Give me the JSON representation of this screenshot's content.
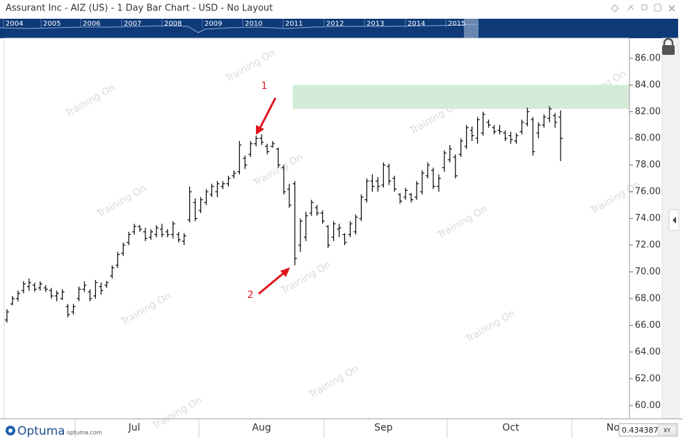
{
  "window_title": "Assurant Inc - AIZ (US) - 1 Day Bar Chart - USD - No Layout",
  "navigator": {
    "years": [
      "2004",
      "2005",
      "2006",
      "2007",
      "2008",
      "2009",
      "2010",
      "2011",
      "2012",
      "2013",
      "2014",
      "2015"
    ]
  },
  "watermark": "Training On",
  "annotations": [
    "1",
    "2"
  ],
  "footer": {
    "brand": "Optuma",
    "url": "optuma.com",
    "cursor_value": "0.4343878",
    "mode": "XY"
  },
  "chart_data": {
    "type": "ohlc",
    "color": "#000000",
    "zone": {
      "from": 82.2,
      "to": 84.0,
      "color": "#d4ecd7"
    },
    "ylim": [
      59.0,
      87.5
    ],
    "yticks": [
      {
        "value": 60,
        "label": "60.00"
      },
      {
        "value": 62,
        "label": "62.00"
      },
      {
        "value": 64,
        "label": "64.00"
      },
      {
        "value": 66,
        "label": "66.00"
      },
      {
        "value": 68,
        "label": "68.00"
      },
      {
        "value": 70,
        "label": "70.00"
      },
      {
        "value": 72,
        "label": "72.00"
      },
      {
        "value": 74,
        "label": "74.00"
      },
      {
        "value": 76,
        "label": "76.00"
      },
      {
        "value": 78,
        "label": "78.00"
      },
      {
        "value": 80,
        "label": "80.00"
      },
      {
        "value": 82,
        "label": "82.00"
      },
      {
        "value": 84,
        "label": "84.00"
      },
      {
        "value": 86,
        "label": "86.00"
      }
    ],
    "categories": [
      null,
      null,
      null,
      null,
      null,
      null,
      null,
      null,
      null,
      null,
      null,
      null,
      null,
      null,
      null,
      null,
      null,
      null,
      null,
      null,
      null,
      null,
      null,
      "Jul",
      null,
      null,
      null,
      null,
      null,
      null,
      null,
      null,
      null,
      null,
      null,
      null,
      null,
      null,
      null,
      null,
      null,
      null,
      null,
      null,
      null,
      null,
      "Aug",
      null,
      null,
      null,
      null,
      null,
      null,
      null,
      null,
      null,
      null,
      null,
      null,
      null,
      null,
      null,
      null,
      null,
      null,
      null,
      null,
      null,
      "Sep",
      null,
      null,
      null,
      null,
      null,
      null,
      null,
      null,
      null,
      null,
      null,
      null,
      null,
      null,
      null,
      null,
      null,
      null,
      null,
      null,
      null,
      null,
      "Oct",
      null,
      null,
      null,
      null,
      null,
      null,
      null,
      null,
      null,
      null,
      null,
      null,
      null,
      null,
      null,
      null,
      null,
      null,
      "Nov",
      null,
      null
    ],
    "open": [
      66.4,
      67.6,
      68.0,
      68.6,
      68.9,
      69.0,
      68.8,
      68.8,
      68.6,
      68.2,
      68.0,
      67.4,
      67.0,
      68.0,
      68.7,
      68.5,
      68.2,
      68.9,
      69.0,
      69.7,
      70.5,
      71.4,
      72.2,
      73.0,
      73.4,
      73.0,
      72.6,
      72.8,
      73.2,
      73.0,
      72.8,
      72.8,
      72.3,
      73.9,
      75.2,
      74.6,
      75.2,
      75.8,
      76.0,
      76.4,
      76.6,
      77.2,
      77.5,
      78.5,
      78.8,
      79.6,
      80.0,
      79.4,
      79.4,
      79.2,
      77.8,
      76.2,
      76.6,
      72.0,
      72.6,
      74.4,
      74.8,
      74.4,
      73.4,
      72.6,
      73.2,
      72.8,
      72.8,
      73.0,
      74.0,
      75.4,
      76.8,
      76.8,
      76.5,
      77.9,
      77.0,
      75.8,
      75.6,
      75.8,
      75.6,
      76.0,
      77.2,
      77.6,
      76.4,
      77.8,
      78.4,
      78.6,
      78.8,
      79.4,
      80.6,
      80.0,
      80.4,
      81.2,
      80.8,
      80.6,
      80.4,
      80.2,
      79.8,
      80.5,
      81.1,
      81.4,
      80.4,
      81.0,
      81.5,
      81.7,
      81.6,
      null,
      null,
      null,
      null,
      null,
      null,
      null,
      null,
      null,
      null,
      null,
      null
    ],
    "high": [
      67.2,
      68.2,
      68.6,
      69.3,
      69.5,
      69.2,
      69.3,
      69.0,
      68.8,
      68.6,
      68.7,
      67.6,
      67.6,
      68.9,
      69.3,
      68.7,
      69.4,
      69.2,
      69.3,
      70.5,
      71.5,
      72.2,
      73.0,
      73.6,
      73.5,
      73.3,
      73.2,
      73.5,
      73.6,
      73.2,
      73.8,
      73.0,
      72.9,
      76.4,
      75.5,
      75.6,
      76.2,
      76.6,
      76.8,
      76.8,
      77.2,
      77.6,
      79.8,
      78.7,
      79.8,
      80.2,
      80.3,
      79.6,
      79.8,
      79.3,
      78.0,
      76.6,
      76.8,
      74.0,
      74.5,
      75.4,
      75.0,
      74.6,
      73.5,
      73.8,
      73.6,
      72.9,
      73.8,
      74.3,
      75.8,
      77.0,
      77.3,
      77.1,
      78.2,
      78.1,
      77.2,
      75.9,
      76.3,
      75.9,
      76.8,
      77.6,
      78.2,
      77.8,
      77.3,
      79.1,
      79.5,
      78.8,
      80.0,
      81.0,
      80.9,
      81.6,
      82.0,
      81.4,
      81.0,
      81.0,
      80.6,
      80.5,
      80.4,
      81.4,
      82.3,
      81.6,
      81.2,
      81.8,
      82.4,
      81.9,
      82.1,
      null,
      null,
      null,
      null,
      null,
      null,
      null,
      null,
      null,
      null,
      null,
      null
    ],
    "low": [
      66.2,
      67.5,
      67.8,
      68.4,
      68.6,
      68.5,
      68.6,
      68.5,
      68.0,
      67.8,
      67.9,
      66.6,
      66.8,
      67.8,
      68.5,
      67.8,
      68.0,
      68.3,
      68.8,
      69.5,
      70.3,
      71.2,
      72.0,
      72.8,
      73.0,
      72.3,
      72.4,
      72.6,
      72.6,
      72.6,
      72.5,
      72.2,
      72.0,
      73.7,
      73.8,
      74.4,
      75.0,
      75.6,
      75.6,
      76.2,
      76.4,
      77.0,
      77.3,
      77.7,
      78.6,
      79.4,
      79.5,
      78.8,
      79.3,
      77.8,
      75.8,
      74.8,
      70.5,
      71.5,
      72.3,
      74.2,
      74.2,
      73.6,
      71.8,
      72.3,
      72.6,
      72.0,
      72.6,
      72.8,
      73.8,
      75.2,
      76.0,
      76.0,
      76.3,
      76.5,
      76.0,
      75.1,
      75.4,
      75.2,
      75.4,
      75.8,
      77.0,
      76.2,
      76.0,
      77.5,
      78.2,
      77.0,
      78.6,
      79.2,
      79.8,
      79.6,
      80.2,
      80.8,
      80.3,
      80.3,
      79.8,
      79.6,
      79.6,
      80.3,
      80.9,
      78.7,
      80.0,
      80.8,
      81.2,
      80.8,
      78.3,
      null,
      null,
      null,
      null,
      null,
      null,
      null,
      null,
      null,
      null,
      null,
      null
    ],
    "close": [
      67.0,
      68.0,
      68.4,
      69.1,
      69.2,
      68.7,
      69.1,
      68.7,
      68.2,
      68.4,
      68.5,
      66.8,
      67.4,
      68.7,
      69.0,
      68.0,
      69.2,
      68.6,
      69.2,
      70.3,
      71.3,
      72.0,
      72.8,
      73.4,
      73.2,
      72.5,
      73.0,
      73.3,
      72.8,
      72.8,
      73.6,
      72.4,
      72.7,
      76.0,
      74.0,
      75.4,
      76.0,
      76.4,
      76.6,
      76.6,
      77.0,
      77.4,
      79.5,
      78.0,
      79.6,
      80.0,
      79.7,
      79.0,
      79.6,
      78.0,
      76.0,
      75.0,
      71.0,
      73.8,
      74.2,
      75.2,
      74.4,
      73.8,
      72.0,
      73.6,
      73.3,
      72.2,
      73.6,
      74.1,
      75.6,
      76.8,
      76.4,
      76.4,
      78.0,
      76.8,
      76.2,
      75.3,
      76.1,
      75.4,
      76.6,
      77.4,
      78.0,
      76.4,
      77.0,
      78.9,
      79.2,
      77.2,
      79.8,
      80.8,
      80.2,
      81.4,
      81.8,
      81.0,
      80.5,
      80.5,
      80.0,
      79.9,
      80.2,
      81.2,
      82.0,
      79.0,
      81.0,
      81.6,
      82.2,
      81.2,
      80.0,
      null,
      null,
      null,
      null,
      null,
      null,
      null,
      null,
      null,
      null,
      null,
      null
    ]
  }
}
